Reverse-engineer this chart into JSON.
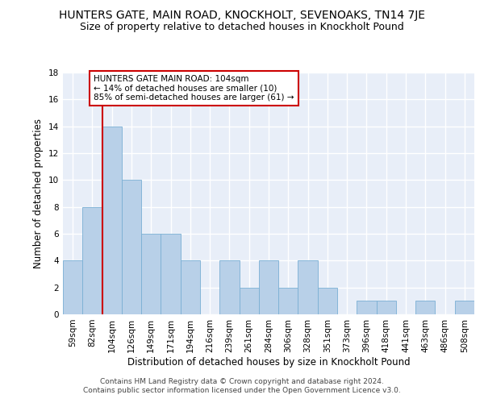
{
  "title": "HUNTERS GATE, MAIN ROAD, KNOCKHOLT, SEVENOAKS, TN14 7JE",
  "subtitle": "Size of property relative to detached houses in Knockholt Pound",
  "xlabel": "Distribution of detached houses by size in Knockholt Pound",
  "ylabel": "Number of detached properties",
  "categories": [
    "59sqm",
    "82sqm",
    "104sqm",
    "126sqm",
    "149sqm",
    "171sqm",
    "194sqm",
    "216sqm",
    "239sqm",
    "261sqm",
    "284sqm",
    "306sqm",
    "328sqm",
    "351sqm",
    "373sqm",
    "396sqm",
    "418sqm",
    "441sqm",
    "463sqm",
    "486sqm",
    "508sqm"
  ],
  "values": [
    4,
    8,
    14,
    10,
    6,
    6,
    4,
    0,
    4,
    2,
    4,
    2,
    4,
    2,
    0,
    1,
    1,
    0,
    1,
    0,
    1
  ],
  "bar_color": "#b8d0e8",
  "bar_edge_color": "#7aafd4",
  "highlight_line_color": "#cc0000",
  "ylim": [
    0,
    18
  ],
  "yticks": [
    0,
    2,
    4,
    6,
    8,
    10,
    12,
    14,
    16,
    18
  ],
  "annotation_text": "HUNTERS GATE MAIN ROAD: 104sqm\n← 14% of detached houses are smaller (10)\n85% of semi-detached houses are larger (61) →",
  "annotation_box_color": "#ffffff",
  "annotation_box_edge": "#cc0000",
  "footer_line1": "Contains HM Land Registry data © Crown copyright and database right 2024.",
  "footer_line2": "Contains public sector information licensed under the Open Government Licence v3.0.",
  "background_color": "#e8eef8",
  "title_fontsize": 10,
  "subtitle_fontsize": 9,
  "axis_label_fontsize": 8.5,
  "tick_fontsize": 7.5,
  "annotation_fontsize": 7.5,
  "footer_fontsize": 6.5
}
